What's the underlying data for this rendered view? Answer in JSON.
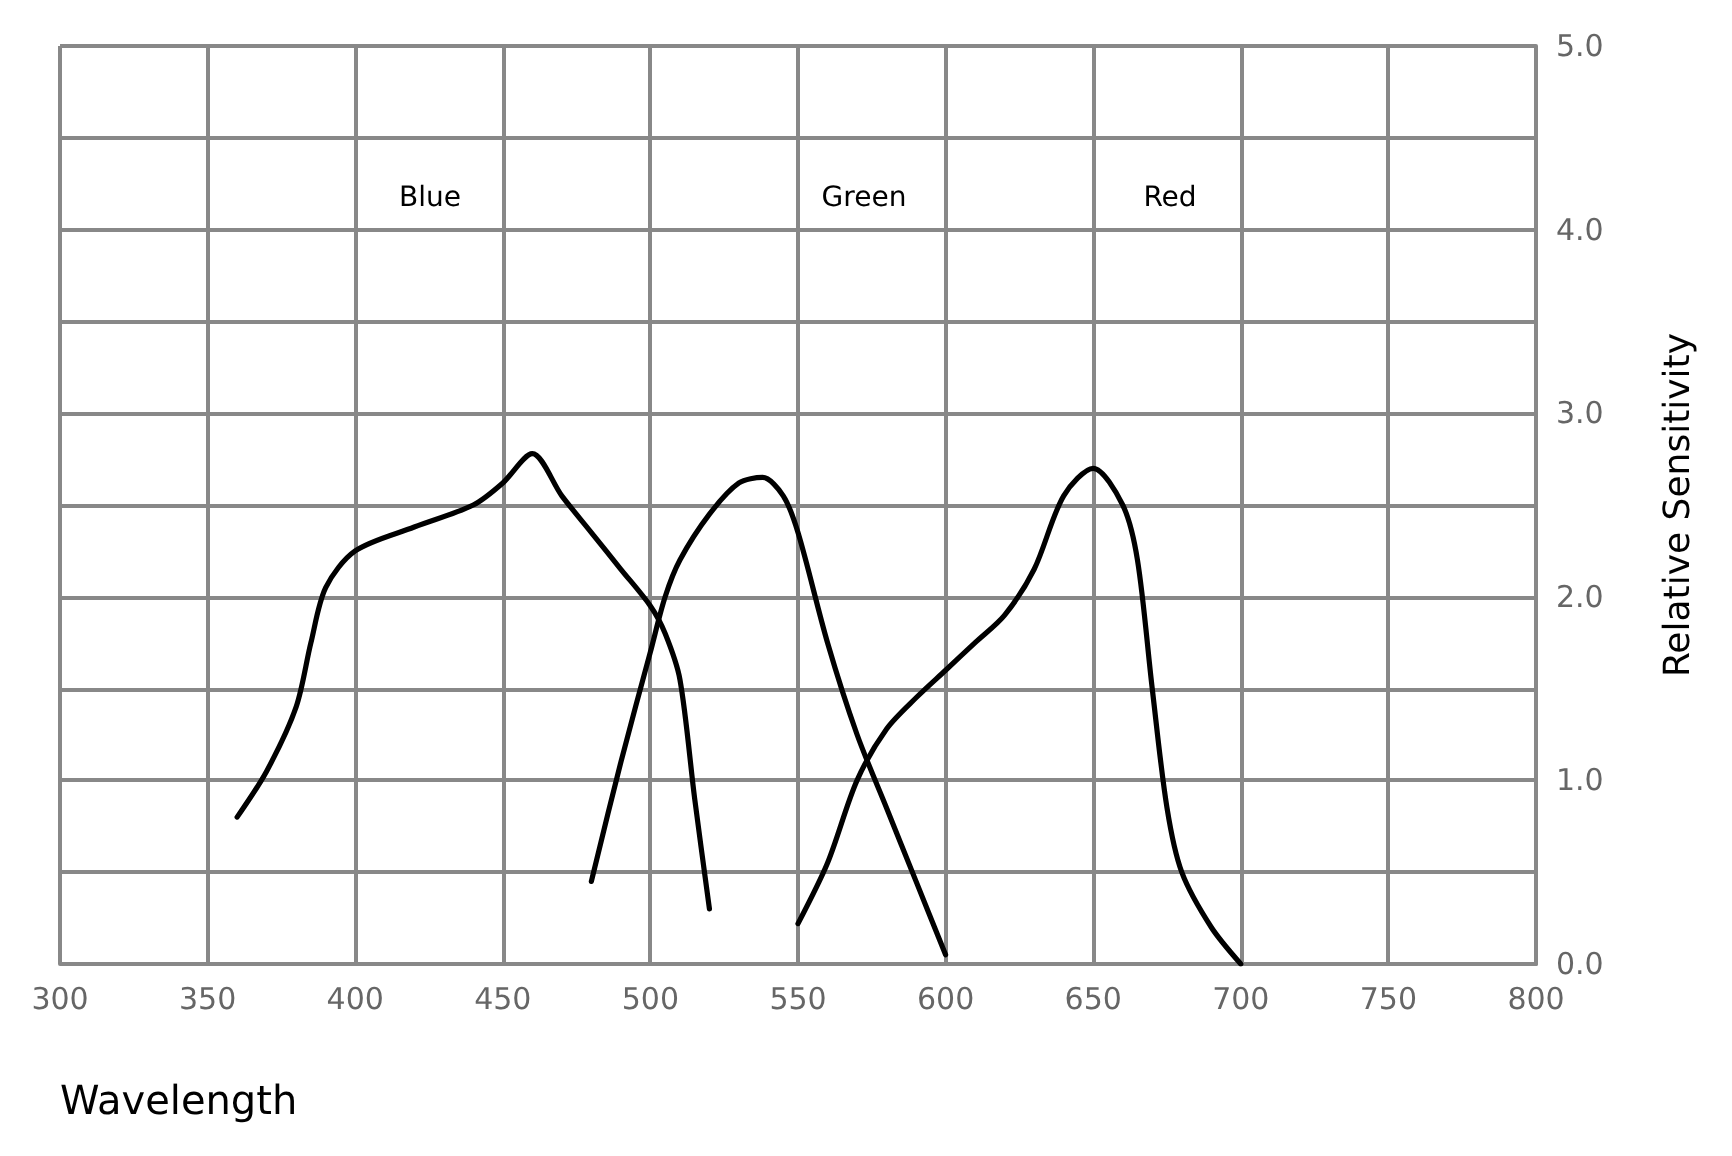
{
  "chart_data": {
    "type": "line",
    "xlabel": "Wavelength",
    "ylabel": "Relative Sensitivity",
    "xlim": [
      300,
      800
    ],
    "xticks": [
      300,
      350,
      400,
      450,
      500,
      550,
      600,
      650,
      700,
      750,
      800
    ],
    "ylim": [
      0,
      5
    ],
    "yticks": [
      {
        "value": 0,
        "label": "0.0"
      },
      {
        "value": 0.5,
        "label": null
      },
      {
        "value": 1,
        "label": "1.0"
      },
      {
        "value": 1.5,
        "label": null
      },
      {
        "value": 2,
        "label": "2.0"
      },
      {
        "value": 2.5,
        "label": null
      },
      {
        "value": 3,
        "label": "3.0"
      },
      {
        "value": 3.5,
        "label": null
      },
      {
        "value": 4,
        "label": "4.0"
      },
      {
        "value": 4.5,
        "label": null
      },
      {
        "value": 5,
        "label": "5.0"
      }
    ],
    "grid": true,
    "marker": "none",
    "line_style": "solid",
    "annotations": [
      "Blue",
      "Green",
      "Red"
    ],
    "series": [
      {
        "color": "#000000",
        "x": [
          360,
          370,
          380,
          385,
          390,
          400,
          420,
          440,
          450,
          460,
          470,
          480,
          490,
          500,
          505,
          510,
          515,
          520
        ],
        "values": [
          0.8,
          1.05,
          1.4,
          1.75,
          2.05,
          2.25,
          2.38,
          2.5,
          2.62,
          2.78,
          2.55,
          2.35,
          2.15,
          1.95,
          1.8,
          1.55,
          0.9,
          0.3
        ]
      },
      {
        "color": "#000000",
        "x": [
          480,
          490,
          500,
          505,
          510,
          520,
          530,
          538,
          545,
          550,
          560,
          570,
          580,
          590,
          600
        ],
        "values": [
          0.45,
          1.1,
          1.7,
          2.0,
          2.2,
          2.45,
          2.62,
          2.65,
          2.55,
          2.35,
          1.75,
          1.25,
          0.85,
          0.45,
          0.05
        ]
      },
      {
        "color": "#000000",
        "x": [
          550,
          560,
          570,
          580,
          590,
          600,
          610,
          620,
          630,
          640,
          650,
          660,
          665,
          670,
          675,
          680,
          690,
          700
        ],
        "values": [
          0.22,
          0.55,
          1.0,
          1.28,
          1.45,
          1.6,
          1.75,
          1.9,
          2.15,
          2.55,
          2.7,
          2.5,
          2.2,
          1.5,
          0.85,
          0.5,
          0.2,
          0
        ]
      }
    ]
  }
}
